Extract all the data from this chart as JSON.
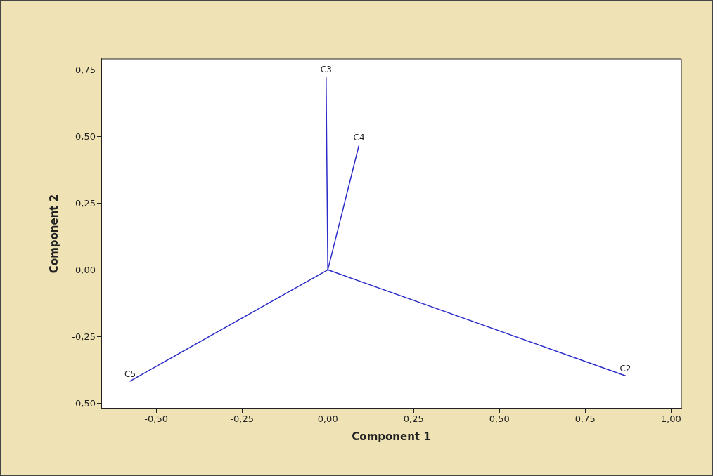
{
  "chart_data": {
    "type": "line",
    "xlabel": "Component 1",
    "ylabel": "Component 2",
    "xlim": [
      -0.66,
      1.03
    ],
    "ylim": [
      -0.52,
      0.79
    ],
    "xticks": [
      {
        "value": -0.5,
        "label": "-0,50"
      },
      {
        "value": -0.25,
        "label": "-0,25"
      },
      {
        "value": 0,
        "label": "0,00"
      },
      {
        "value": 0.25,
        "label": "0,25"
      },
      {
        "value": 0.5,
        "label": "0,50"
      },
      {
        "value": 0.75,
        "label": "0,75"
      },
      {
        "value": 1,
        "label": "1,00"
      }
    ],
    "yticks": [
      {
        "value": -0.5,
        "label": "-0,50"
      },
      {
        "value": -0.25,
        "label": "-0,25"
      },
      {
        "value": 0,
        "label": "0,00"
      },
      {
        "value": 0.25,
        "label": "0,25"
      },
      {
        "value": 0.5,
        "label": "0,50"
      },
      {
        "value": 0.75,
        "label": "0,75"
      }
    ],
    "grid": false,
    "legend": false,
    "marker": "none",
    "line_style": "solid",
    "series": [
      {
        "name": "C2",
        "color": "#2a2ac8",
        "x": [
          0,
          0.867
        ],
        "values": [
          0,
          -0.397
        ]
      },
      {
        "name": "C3",
        "color": "#2a2ac8",
        "x": [
          0,
          -0.005
        ],
        "values": [
          0,
          0.723
        ]
      },
      {
        "name": "C4",
        "color": "#2a2ac8",
        "x": [
          0,
          0.091
        ],
        "values": [
          0,
          0.468
        ]
      },
      {
        "name": "C5",
        "color": "#2a2ac8",
        "x": [
          0,
          -0.576
        ],
        "values": [
          0,
          -0.417
        ]
      }
    ]
  }
}
